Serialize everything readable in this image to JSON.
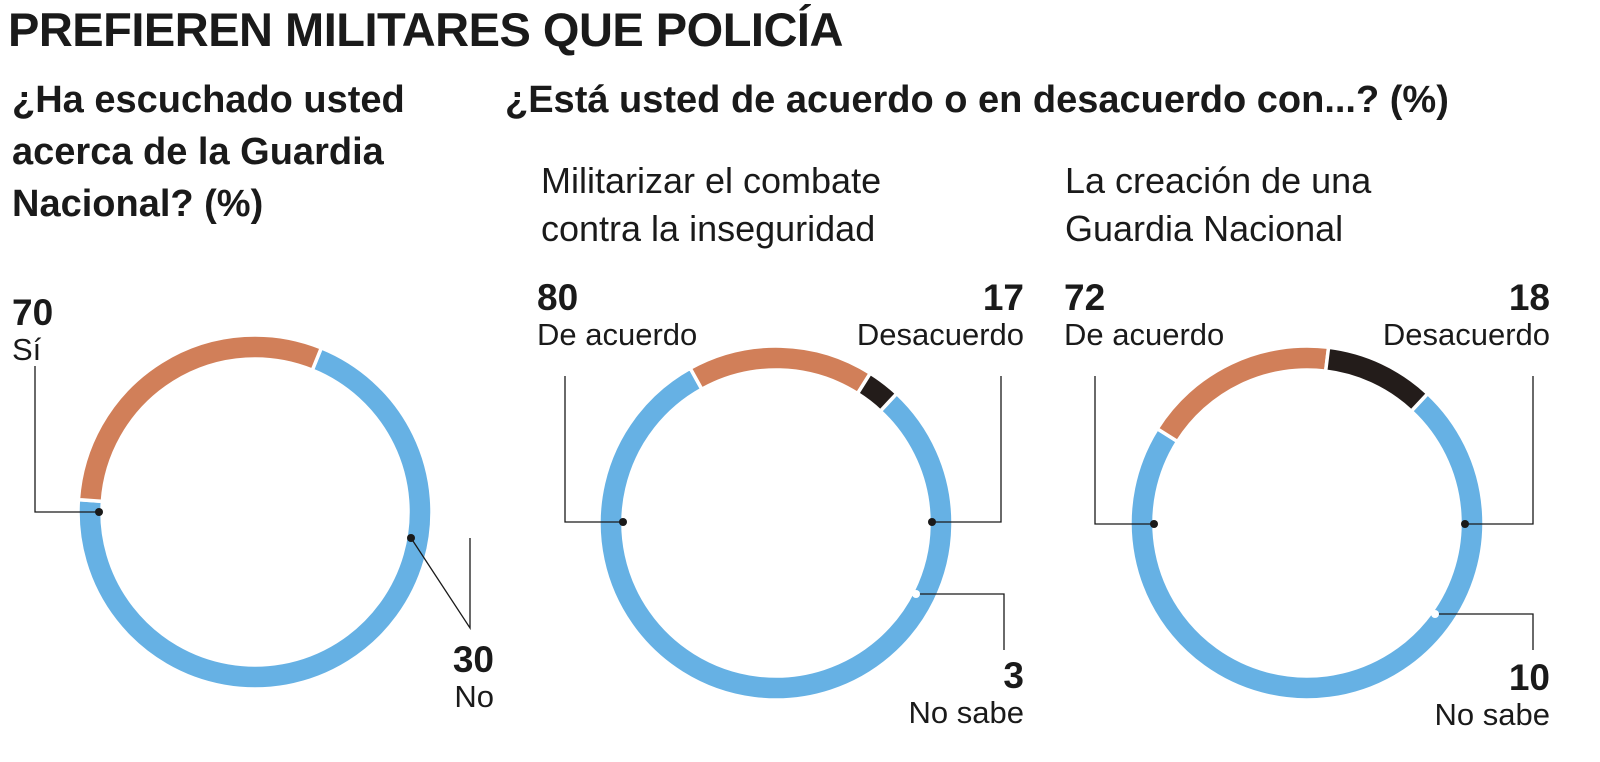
{
  "headline": "PREFIEREN MILITARES QUE POLICÍA",
  "question_1": "¿Ha escuchado usted acerca de la Guardia Nacional? (%)",
  "question_2": "¿Está usted de acuerdo o en desacuerdo con...? (%)",
  "colors": {
    "blue": "#66b1e4",
    "orange": "#d17f59",
    "black": "#231c1a",
    "separator": "#ffffff"
  },
  "chart_data": [
    {
      "type": "pie",
      "title": "¿Ha escuchado usted acerca de la Guardia Nacional? (%)",
      "subtitle": "",
      "series": [
        {
          "name": "Sí",
          "value": 70,
          "color": "#66b1e4"
        },
        {
          "name": "No",
          "value": 30,
          "color": "#d17f59"
        }
      ]
    },
    {
      "type": "pie",
      "title": "",
      "subtitle": "Militarizar el combate contra la inseguridad",
      "series": [
        {
          "name": "De acuerdo",
          "value": 80,
          "color": "#66b1e4"
        },
        {
          "name": "Desacuerdo",
          "value": 17,
          "color": "#d17f59"
        },
        {
          "name": "No sabe",
          "value": 3,
          "color": "#231c1a"
        }
      ]
    },
    {
      "type": "pie",
      "title": "",
      "subtitle": "La creación de una Guardia Nacional",
      "series": [
        {
          "name": "De acuerdo",
          "value": 72,
          "color": "#66b1e4"
        },
        {
          "name": "Desacuerdo",
          "value": 18,
          "color": "#d17f59"
        },
        {
          "name": "No sabe",
          "value": 10,
          "color": "#231c1a"
        }
      ]
    }
  ]
}
